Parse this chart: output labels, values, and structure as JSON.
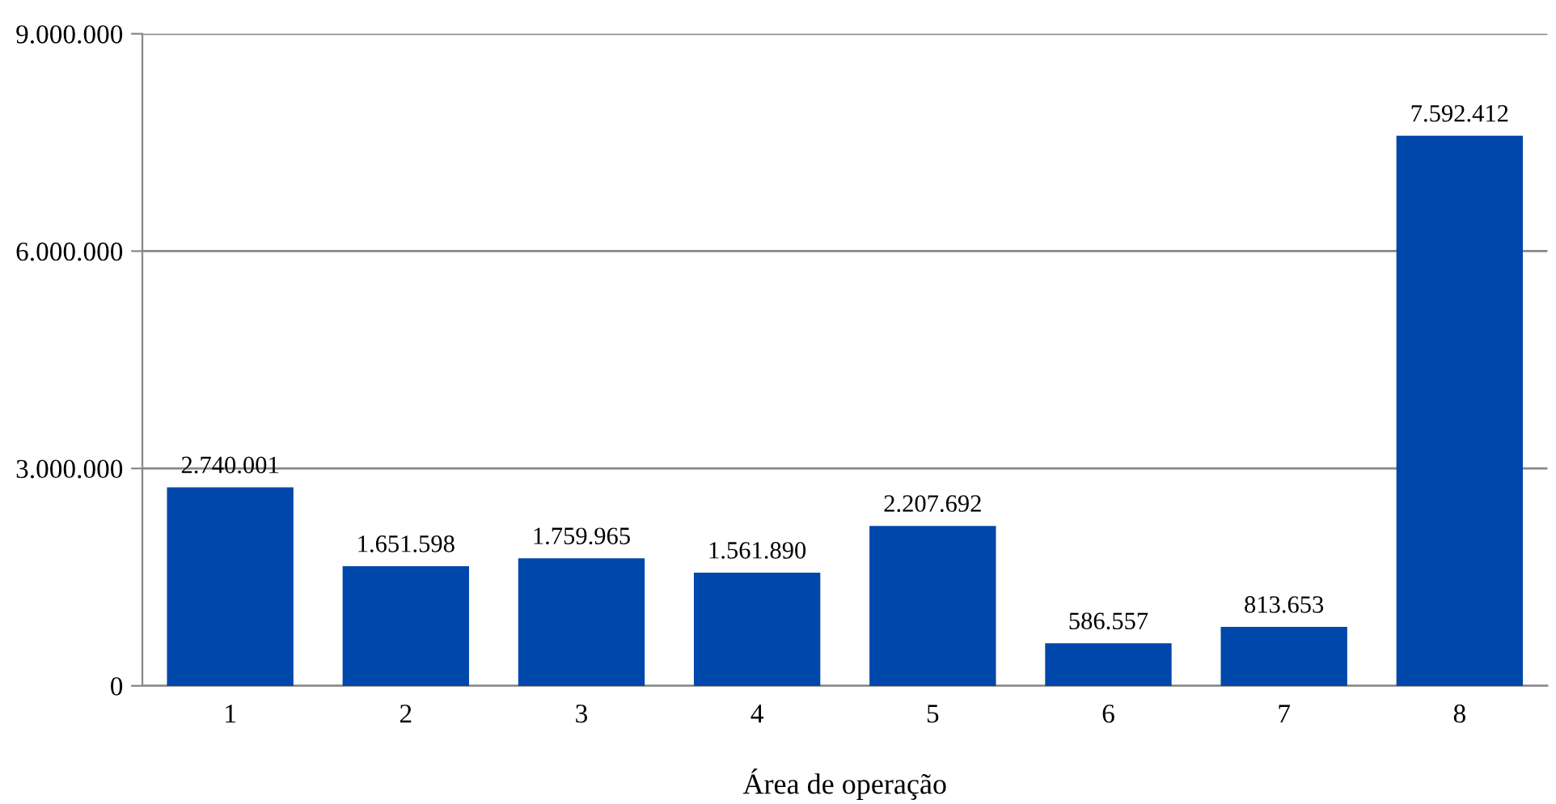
{
  "chart_data": {
    "type": "bar",
    "xlabel": "Área de operação",
    "categories": [
      "1",
      "2",
      "3",
      "4",
      "5",
      "6",
      "7",
      "8"
    ],
    "values": [
      2740001,
      1651598,
      1759965,
      1561890,
      2207692,
      586557,
      813653,
      7592412
    ],
    "value_labels": [
      "2.740.001",
      "1.651.598",
      "1.759.965",
      "1.561.890",
      "2.207.692",
      "586.557",
      "813.653",
      "7.592.412"
    ],
    "color": "#0047ab",
    "ylim": [
      0,
      9000000
    ],
    "yticks": [
      0,
      {
        "value": 3000000,
        "label": "3.000.000"
      },
      {
        "value": 6000000,
        "label": "6.000.000"
      },
      {
        "value": 9000000,
        "label": "9.000.000"
      }
    ],
    "grid": "y",
    "legend": false
  }
}
